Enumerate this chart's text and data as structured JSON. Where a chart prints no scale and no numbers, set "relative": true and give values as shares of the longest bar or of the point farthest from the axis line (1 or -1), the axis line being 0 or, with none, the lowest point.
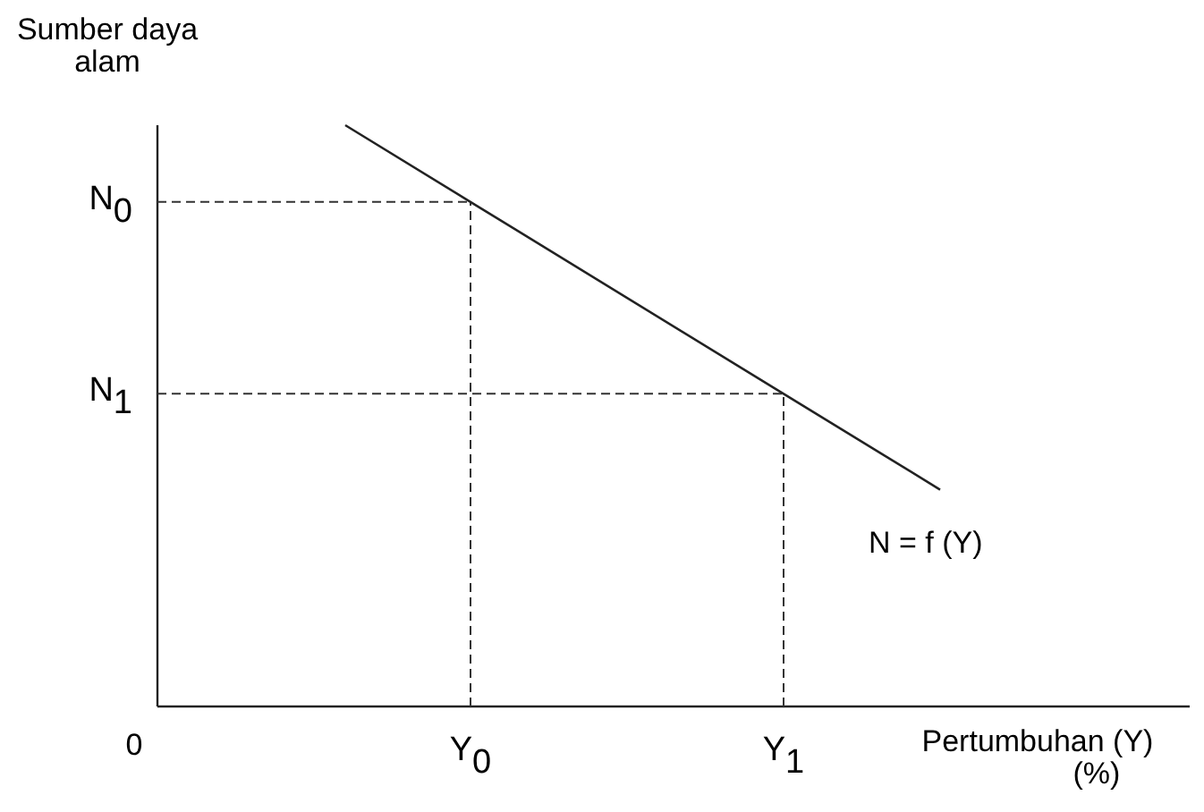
{
  "chart_data": {
    "type": "line",
    "relative": true,
    "ylabel": "Sumber daya alam",
    "xlabel": "Pertumbuhan (Y) (%)",
    "categories": [
      null,
      null,
      null,
      null,
      null,
      null,
      null,
      null,
      null,
      null,
      "Y$_{0}$",
      null,
      null,
      null,
      null,
      null,
      null,
      null,
      null,
      null,
      "Y$_{1}$",
      null,
      null,
      null,
      null,
      null,
      null,
      null,
      null,
      null,
      null,
      null,
      null
    ],
    "series": [
      {
        "name": "N = f (Y)",
        "color": "#222222",
        "values": [
          null,
          null,
          null,
          null,
          null,
          null,
          1,
          null,
          null,
          null,
          0.868,
          null,
          null,
          null,
          null,
          null,
          null,
          null,
          null,
          null,
          0.538,
          null,
          null,
          null,
          null,
          0.373,
          null,
          null,
          null,
          null,
          null,
          null,
          null
        ]
      }
    ],
    "annotations": [
      "0"
    ],
    "ref_lines": [
      {
        "axis": "y",
        "value": 0.868,
        "label": "N$_{0}$",
        "line_style": "dashed"
      },
      {
        "axis": "y",
        "value": 0.538,
        "label": "N$_{1}$",
        "line_style": "dashed"
      },
      {
        "axis": "x",
        "value": "Y$_{0}$",
        "line_style": "dashed"
      },
      {
        "axis": "x",
        "value": "Y$_{1}$",
        "line_style": "dashed"
      }
    ]
  }
}
